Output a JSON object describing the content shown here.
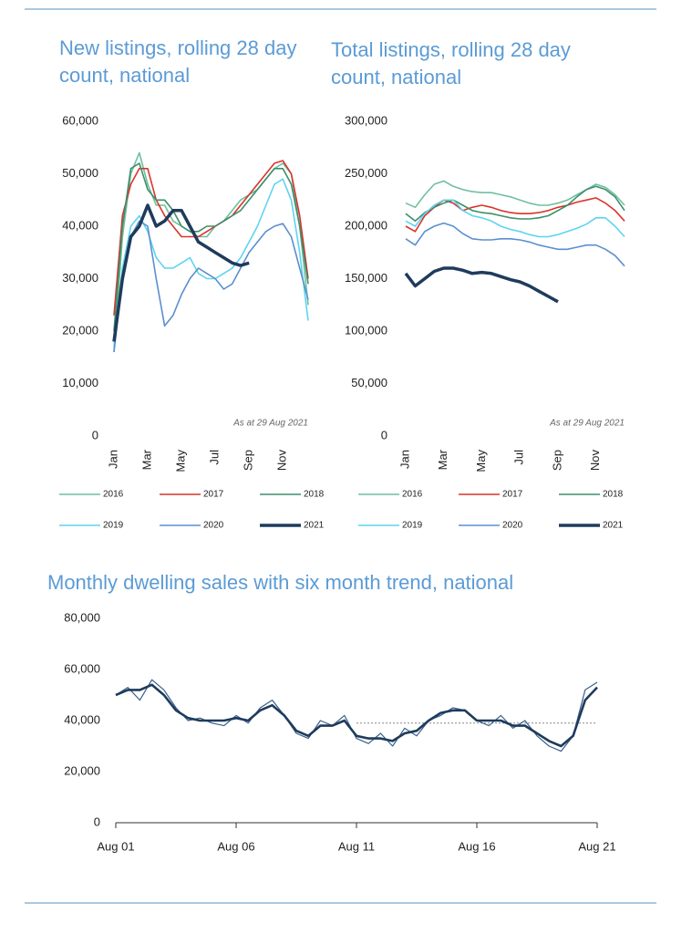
{
  "chart_data": [
    {
      "type": "line",
      "title": "New listings, rolling 28 day count, national",
      "annotation": "As at 29 Aug 2021",
      "categories": [
        "Jan",
        null,
        null,
        null,
        "Mar",
        null,
        null,
        null,
        "May",
        null,
        null,
        null,
        "Jul",
        null,
        null,
        null,
        "Sep",
        null,
        null,
        null,
        "Nov",
        null,
        null,
        null
      ],
      "ylim": [
        0,
        60000
      ],
      "yticks": [
        0,
        {
          "value": 10000,
          "label": "10,000"
        },
        {
          "value": 20000,
          "label": "20,000"
        },
        {
          "value": 30000,
          "label": "30,000"
        },
        {
          "value": 40000,
          "label": "40,000"
        },
        {
          "value": 50000,
          "label": "50,000"
        },
        {
          "value": 60000,
          "label": "60,000"
        }
      ],
      "series": [
        {
          "name": "2016",
          "color": "#6fbf9f",
          "values": [
            16000,
            38000,
            50000,
            54000,
            48000,
            44000,
            44000,
            41000,
            40000,
            39000,
            38000,
            38000,
            40000,
            41000,
            43000,
            45000,
            46000,
            47000,
            49000,
            51000,
            52000,
            50000,
            40000,
            25000
          ]
        },
        {
          "name": "2017",
          "color": "#d9342b",
          "values": [
            23000,
            42000,
            48000,
            51000,
            51000,
            45000,
            42000,
            40000,
            38000,
            38000,
            38000,
            39000,
            40000,
            41000,
            42000,
            44000,
            46000,
            48000,
            50000,
            52000,
            52500,
            50000,
            42000,
            30000
          ]
        },
        {
          "name": "2018",
          "color": "#3e8e6b",
          "values": [
            20000,
            40000,
            51000,
            52000,
            47000,
            45000,
            45000,
            43000,
            40000,
            39000,
            39000,
            40000,
            40000,
            41000,
            42000,
            43000,
            45000,
            47000,
            49000,
            51000,
            51000,
            48000,
            40000,
            29000
          ]
        },
        {
          "name": "2019",
          "color": "#5fd3f0",
          "values": [
            17000,
            32000,
            40000,
            42000,
            39000,
            34000,
            32000,
            32000,
            33000,
            34000,
            31000,
            30000,
            30000,
            31000,
            32000,
            34000,
            37000,
            40000,
            44000,
            48000,
            49000,
            45000,
            35000,
            22000
          ]
        },
        {
          "name": "2020",
          "color": "#5b8fd0",
          "values": [
            16000,
            30000,
            38000,
            41000,
            40000,
            30000,
            21000,
            23000,
            27000,
            30000,
            32000,
            31000,
            30000,
            28000,
            29000,
            32000,
            35000,
            37000,
            39000,
            40000,
            40500,
            38000,
            32000,
            26000
          ]
        },
        {
          "name": "2021",
          "color": "#1f3b5c",
          "values": [
            18000,
            30000,
            38000,
            40000,
            44000,
            40000,
            41000,
            43000,
            43000,
            40000,
            37000,
            36000,
            35000,
            34000,
            33000,
            32500,
            33000,
            null,
            null,
            null,
            null,
            null,
            null,
            null
          ]
        }
      ]
    },
    {
      "type": "line",
      "title": "Total listings, rolling 28 day count, national",
      "annotation": "As at 29 Aug 2021",
      "categories": [
        "Jan",
        null,
        null,
        null,
        "Mar",
        null,
        null,
        null,
        "May",
        null,
        null,
        null,
        "Jul",
        null,
        null,
        null,
        "Sep",
        null,
        null,
        null,
        "Nov",
        null,
        null,
        null
      ],
      "ylim": [
        0,
        300000
      ],
      "yticks": [
        0,
        {
          "value": 50000,
          "label": "50,000"
        },
        {
          "value": 100000,
          "label": "100,000"
        },
        {
          "value": 150000,
          "label": "150,000"
        },
        {
          "value": 200000,
          "label": "200,000"
        },
        {
          "value": 250000,
          "label": "250,000"
        },
        {
          "value": 300000,
          "label": "300,000"
        }
      ],
      "series": [
        {
          "name": "2016",
          "color": "#6fbf9f",
          "values": [
            222000,
            218000,
            230000,
            240000,
            243000,
            238000,
            235000,
            233000,
            232000,
            232000,
            230000,
            228000,
            225000,
            222000,
            220000,
            220000,
            222000,
            225000,
            230000,
            235000,
            240000,
            237000,
            230000,
            220000
          ]
        },
        {
          "name": "2017",
          "color": "#d9342b",
          "values": [
            200000,
            195000,
            210000,
            218000,
            225000,
            222000,
            215000,
            218000,
            220000,
            218000,
            215000,
            213000,
            212000,
            212000,
            213000,
            215000,
            218000,
            220000,
            223000,
            225000,
            227000,
            222000,
            215000,
            205000
          ]
        },
        {
          "name": "2018",
          "color": "#3e8e6b",
          "values": [
            212000,
            205000,
            213000,
            218000,
            222000,
            225000,
            220000,
            215000,
            213000,
            212000,
            210000,
            208000,
            207000,
            207000,
            208000,
            210000,
            215000,
            220000,
            228000,
            235000,
            238000,
            235000,
            228000,
            215000
          ]
        },
        {
          "name": "2019",
          "color": "#5fd3f0",
          "values": [
            205000,
            200000,
            212000,
            220000,
            225000,
            225000,
            215000,
            210000,
            208000,
            205000,
            200000,
            197000,
            195000,
            192000,
            190000,
            190000,
            192000,
            195000,
            198000,
            202000,
            208000,
            208000,
            200000,
            190000
          ]
        },
        {
          "name": "2020",
          "color": "#5b8fd0",
          "values": [
            188000,
            182000,
            195000,
            200000,
            203000,
            200000,
            193000,
            188000,
            187000,
            187000,
            188000,
            188000,
            187000,
            185000,
            182000,
            180000,
            178000,
            178000,
            180000,
            182000,
            182000,
            178000,
            172000,
            162000
          ]
        },
        {
          "name": "2021",
          "color": "#1f3b5c",
          "values": [
            155000,
            143000,
            150000,
            157000,
            160000,
            160000,
            158000,
            155000,
            156000,
            155000,
            152000,
            149000,
            147000,
            143000,
            138000,
            133000,
            128000,
            null,
            null,
            null,
            null,
            null,
            null,
            null
          ]
        }
      ]
    },
    {
      "type": "line",
      "title": "Monthly dwelling sales with six month trend, national",
      "categories": [
        "Aug 01",
        null,
        null,
        null,
        null,
        null,
        null,
        null,
        null,
        null,
        "Aug 06",
        null,
        null,
        null,
        null,
        null,
        null,
        null,
        null,
        null,
        "Aug 11",
        null,
        null,
        null,
        null,
        null,
        null,
        null,
        null,
        null,
        "Aug 16",
        null,
        null,
        null,
        null,
        null,
        null,
        null,
        null,
        null,
        "Aug 21"
      ],
      "ylim": [
        0,
        80000
      ],
      "yticks": [
        0,
        {
          "value": 20000,
          "label": "20,000"
        },
        {
          "value": 40000,
          "label": "40,000"
        },
        {
          "value": 60000,
          "label": "60,000"
        },
        {
          "value": 80000,
          "label": "80,000"
        }
      ],
      "reference_line": 39000,
      "series": [
        {
          "color": "#3a5f8a",
          "values": [
            50000,
            53000,
            48000,
            56000,
            52000,
            45000,
            40000,
            41000,
            39000,
            38000,
            42000,
            39000,
            45000,
            48000,
            42000,
            35000,
            33000,
            40000,
            38000,
            42000,
            33000,
            31000,
            35000,
            30000,
            37000,
            34000,
            40000,
            42000,
            45000,
            44000,
            40000,
            38000,
            42000,
            37000,
            40000,
            34000,
            30000,
            28000,
            34000,
            52000,
            55000
          ]
        },
        {
          "color": "#1f3b5c",
          "values": [
            50000,
            52000,
            52000,
            54000,
            50000,
            44000,
            41000,
            40000,
            40000,
            40000,
            41000,
            40000,
            44000,
            46000,
            42000,
            36000,
            34000,
            38000,
            38000,
            40000,
            34000,
            33000,
            33000,
            32000,
            35000,
            36000,
            40000,
            43000,
            44000,
            44000,
            40000,
            40000,
            40000,
            38000,
            38000,
            35000,
            32000,
            30000,
            34000,
            48000,
            53000
          ]
        }
      ]
    }
  ]
}
